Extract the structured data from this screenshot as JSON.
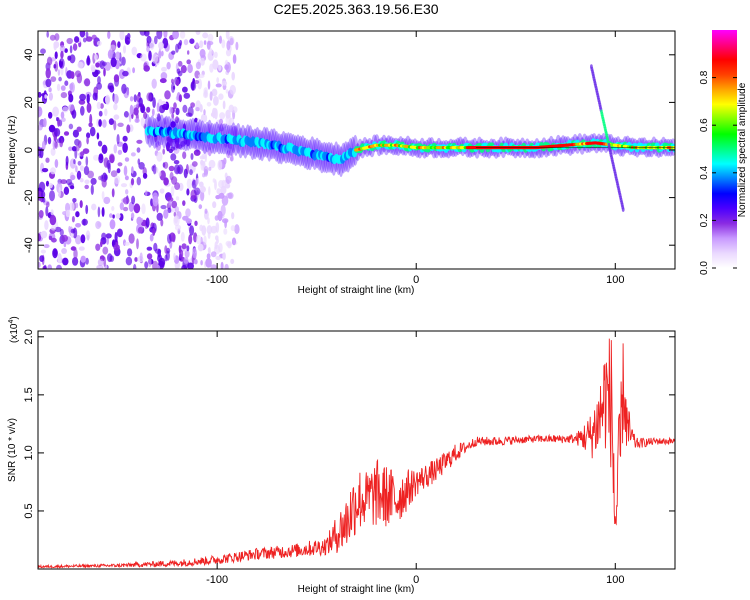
{
  "title": "C2E5.2025.363.19.56.E30",
  "chart_data": [
    {
      "type": "heatmap",
      "xlabel": "Height of straight line (km)",
      "ylabel": "Frequency (Hz)",
      "xlim": [
        -190,
        130
      ],
      "ylim": [
        -50,
        50
      ],
      "xticks": [
        -100,
        0,
        100
      ],
      "yticks": [
        -40,
        -20,
        0,
        20,
        40
      ],
      "colorbar": {
        "label": "Normalized spectral amplitude",
        "range": [
          0,
          1
        ],
        "ticks": [
          0,
          0.2,
          0.4,
          0.6,
          0.8
        ],
        "tick_labels": [
          "0.0",
          "0.2",
          "0.4",
          "0.6",
          "0.8"
        ],
        "colors": [
          "#ffffff",
          "#ead8ff",
          "#c899ff",
          "#8a2be2",
          "#4b00ff",
          "#0000ff",
          "#0080ff",
          "#00ffff",
          "#00ff80",
          "#00ff00",
          "#80ff00",
          "#ffff00",
          "#ffa500",
          "#ff4000",
          "#ff0000",
          "#ff0080",
          "#ff00ff"
        ]
      },
      "noise_region_x": [
        -190,
        -110
      ],
      "ridge": {
        "x": [
          -135,
          -120,
          -100,
          -80,
          -60,
          -45,
          -38,
          -30,
          -20,
          -10,
          0,
          10,
          30,
          60,
          90,
          110,
          130
        ],
        "y": [
          8,
          7,
          5,
          3,
          0,
          -3,
          -4,
          0,
          2,
          2,
          1,
          1,
          1,
          1,
          3,
          1,
          1
        ]
      },
      "slanted_streak": {
        "x": [
          88,
          104
        ],
        "y": [
          35,
          -25
        ]
      }
    },
    {
      "type": "line",
      "xlabel": "Height of straight line (km)",
      "ylabel": "SNR (10 * v/v)",
      "scale_label": "(x10",
      "scale_exponent": "4",
      "scale_suffix": ")",
      "xlim": [
        -190,
        130
      ],
      "ylim": [
        0,
        2.05
      ],
      "xticks": [
        -100,
        0,
        100
      ],
      "yticks": [
        0.5,
        1.0,
        1.5,
        2.0
      ],
      "ytick_labels": [
        "0.5",
        "1.0",
        "1.5",
        "2.0"
      ],
      "series": [
        {
          "name": "SNR",
          "color": "#ee2222",
          "x": [
            -190,
            -150,
            -120,
            -100,
            -80,
            -60,
            -45,
            -35,
            -30,
            -25,
            -20,
            -10,
            0,
            10,
            20,
            25,
            30,
            40,
            60,
            80,
            88,
            92,
            95,
            98,
            100,
            102,
            104,
            106,
            110,
            120,
            130
          ],
          "y": [
            0.02,
            0.03,
            0.05,
            0.08,
            0.13,
            0.16,
            0.2,
            0.4,
            0.6,
            0.6,
            0.65,
            0.6,
            0.75,
            0.85,
            1.0,
            1.05,
            1.1,
            1.1,
            1.12,
            1.12,
            1.15,
            1.3,
            1.5,
            1.45,
            0.4,
            0.8,
            1.6,
            1.2,
            1.08,
            1.1,
            1.1
          ],
          "noise_amplitude": [
            0.01,
            0.015,
            0.03,
            0.04,
            0.05,
            0.06,
            0.08,
            0.25,
            0.3,
            0.25,
            0.3,
            0.25,
            0.12,
            0.1,
            0.08,
            0.05,
            0.04,
            0.04,
            0.03,
            0.04,
            0.2,
            0.35,
            0.5,
            0.6,
            0.6,
            0.55,
            0.4,
            0.25,
            0.05,
            0.03,
            0.03
          ]
        }
      ]
    }
  ]
}
